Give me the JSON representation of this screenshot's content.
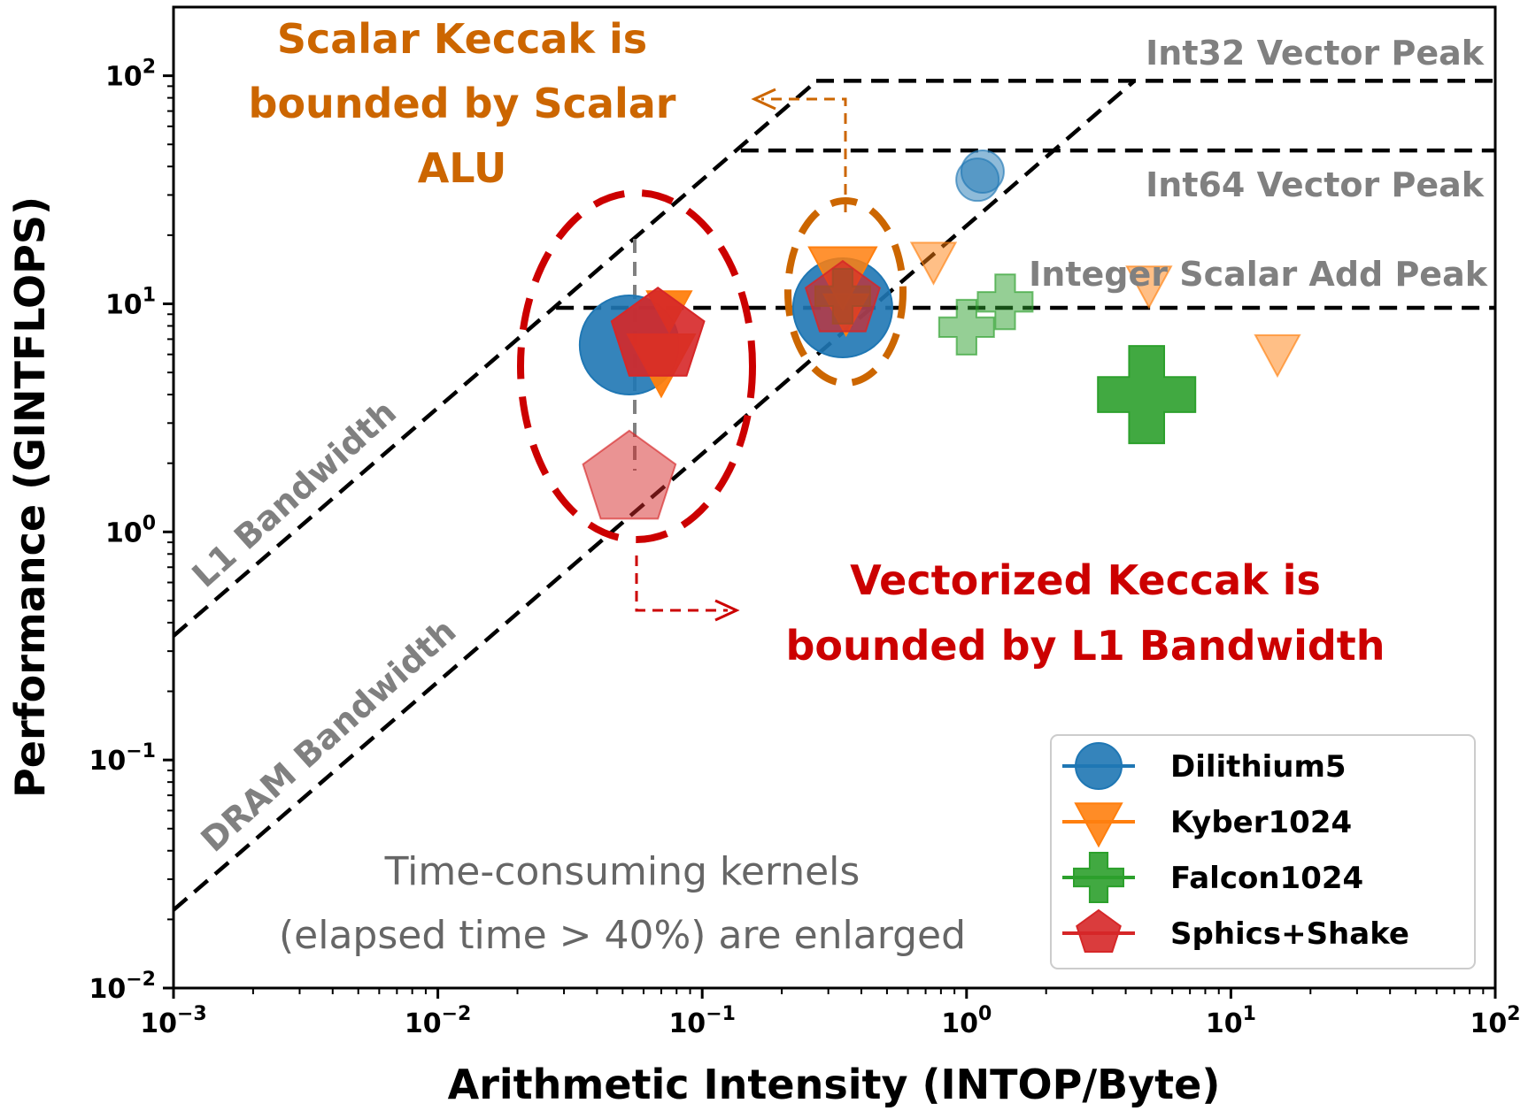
{
  "chart_data": {
    "type": "scatter",
    "title": "",
    "xlabel": "Arithmetic Intensity (INTOP/Byte)",
    "ylabel": "Performance (GINTFLOPS)",
    "xscale": "log",
    "yscale": "log",
    "xlim": [
      0.001,
      100
    ],
    "ylim": [
      0.01,
      200
    ],
    "x_ticks": [
      {
        "value": 0.001,
        "base": "10",
        "exp": "−3"
      },
      {
        "value": 0.01,
        "base": "10",
        "exp": "−2"
      },
      {
        "value": 0.1,
        "base": "10",
        "exp": "−1"
      },
      {
        "value": 1,
        "base": "10",
        "exp": "0"
      },
      {
        "value": 10,
        "base": "10",
        "exp": "1"
      },
      {
        "value": 100,
        "base": "10",
        "exp": "2"
      }
    ],
    "y_ticks": [
      {
        "value": 0.01,
        "base": "10",
        "exp": "−2"
      },
      {
        "value": 0.1,
        "base": "10",
        "exp": "−1"
      },
      {
        "value": 1,
        "base": "10",
        "exp": "0"
      },
      {
        "value": 10,
        "base": "10",
        "exp": "1"
      },
      {
        "value": 100,
        "base": "10",
        "exp": "2"
      }
    ],
    "rooflines": [
      {
        "name": "Int32 Vector Peak",
        "value": 95,
        "from_x": 0.27
      },
      {
        "name": "Int64 Vector Peak",
        "value": 47,
        "from_x": 0.14
      },
      {
        "name": "Integer Scalar Add Peak",
        "value": 9.6,
        "from_x": 0.028
      }
    ],
    "bandwidths": [
      {
        "name": "L1 Bandwidth",
        "slope_gbps": 350,
        "to_x": 0.27
      },
      {
        "name": "DRAM Bandwidth",
        "slope_gbps": 22,
        "to_x": 4.3
      }
    ],
    "series": [
      {
        "name": "Dilithium5",
        "color": "#1f77b4",
        "marker": "circle",
        "points": [
          {
            "x": 0.053,
            "y": 6.6,
            "enlarged": true,
            "alpha": 0.9
          },
          {
            "x": 0.34,
            "y": 9.6,
            "enlarged": true,
            "alpha": 0.9
          },
          {
            "x": 1.1,
            "y": 35,
            "enlarged": false,
            "alpha": 0.5
          },
          {
            "x": 1.15,
            "y": 38,
            "enlarged": false,
            "alpha": 0.5
          }
        ]
      },
      {
        "name": "Kyber1024",
        "color": "#ff7f0e",
        "marker": "triangle-down",
        "points": [
          {
            "x": 0.07,
            "y": 5.6,
            "enlarged": true,
            "alpha": 0.95
          },
          {
            "x": 0.075,
            "y": 9.5,
            "enlarged": false,
            "alpha": 0.95
          },
          {
            "x": 0.34,
            "y": 13.5,
            "enlarged": true,
            "alpha": 0.85
          },
          {
            "x": 0.35,
            "y": 9.2,
            "enlarged": false,
            "alpha": 0.85
          },
          {
            "x": 0.75,
            "y": 15.5,
            "enlarged": false,
            "alpha": 0.5
          },
          {
            "x": 4.9,
            "y": 12.2,
            "enlarged": false,
            "alpha": 0.5
          },
          {
            "x": 15,
            "y": 6.1,
            "enlarged": false,
            "alpha": 0.5
          }
        ]
      },
      {
        "name": "Falcon1024",
        "color": "#2ca02c",
        "marker": "plus",
        "points": [
          {
            "x": 0.34,
            "y": 10.8,
            "enlarged": false,
            "alpha": 0.7
          },
          {
            "x": 1.0,
            "y": 7.9,
            "enlarged": false,
            "alpha": 0.5
          },
          {
            "x": 1.4,
            "y": 10.2,
            "enlarged": false,
            "alpha": 0.5
          },
          {
            "x": 4.8,
            "y": 4.0,
            "enlarged": true,
            "alpha": 0.9
          }
        ]
      },
      {
        "name": "Sphics+Shake",
        "color": "#d62728",
        "marker": "pentagon",
        "points": [
          {
            "x": 0.068,
            "y": 7.2,
            "enlarged": true,
            "alpha": 0.9
          },
          {
            "x": 0.053,
            "y": 1.7,
            "enlarged": true,
            "alpha": 0.5
          },
          {
            "x": 0.34,
            "y": 10.4,
            "enlarged": false,
            "alpha": 0.7
          }
        ]
      }
    ],
    "annotations": {
      "scalar_keccak": [
        "Scalar Keccak is",
        "bounded by Scalar",
        "ALU"
      ],
      "vectorized_keccak": [
        "Vectorized Keccak is",
        "bounded by L1 Bandwidth"
      ],
      "time_consuming": [
        "Time-consuming kernels",
        "(elapsed time > 40%) are enlarged"
      ]
    },
    "legend": {
      "position": "lower-right"
    }
  }
}
